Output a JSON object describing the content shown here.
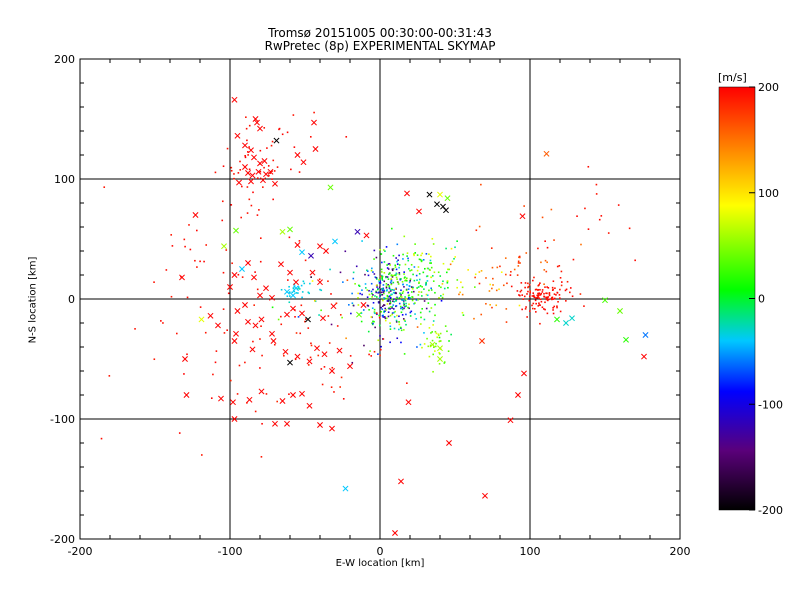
{
  "header": {
    "title": "Tromsø 20151005 00:30:00-00:31:43",
    "subtitle": "RwPretec (8p) EXPERIMENTAL SKYMAP"
  },
  "chart_data": {
    "type": "scatter",
    "title": "Tromsø 20151005 00:30:00-00:31:43",
    "subtitle": "RwPretec (8p) EXPERIMENTAL SKYMAP",
    "xlabel": "E-W location [km]",
    "ylabel": "N-S location [km]",
    "xlim": [
      -200,
      200
    ],
    "ylim": [
      -200,
      200
    ],
    "x_ticks": [
      "-200",
      "-100",
      "0",
      "100",
      "200"
    ],
    "y_ticks": [
      "-200",
      "-100",
      "0",
      "100",
      "200"
    ],
    "grid": "lines at ±100 and 0 km",
    "colorbar": {
      "label": "[m/s]",
      "range": [
        -200,
        200
      ],
      "ticks": [
        "200",
        "100",
        "0",
        "-100",
        "-200"
      ],
      "palette": [
        "#000000",
        "#5a007a",
        "#0000ff",
        "#00c8ff",
        "#00ff00",
        "#ffff00",
        "#ff8000",
        "#ff0000"
      ]
    },
    "marker_legend_note": "x = larger marker, . = small dot; color encodes velocity",
    "points": [
      {
        "x": -97,
        "y": 166,
        "v": 200,
        "m": "x"
      },
      {
        "x": -95,
        "y": 136,
        "v": 200,
        "m": "x"
      },
      {
        "x": -83,
        "y": 150,
        "v": 200,
        "m": "x"
      },
      {
        "x": -82,
        "y": 147,
        "v": 200,
        "m": "x"
      },
      {
        "x": -80,
        "y": 142,
        "v": 200,
        "m": "x"
      },
      {
        "x": -69,
        "y": 132,
        "v": -200,
        "m": "x"
      },
      {
        "x": -90,
        "y": 128,
        "v": 200,
        "m": "x"
      },
      {
        "x": -86,
        "y": 124,
        "v": 200,
        "m": "x"
      },
      {
        "x": -84,
        "y": 118,
        "v": 200,
        "m": "x"
      },
      {
        "x": -80,
        "y": 113,
        "v": 200,
        "m": "x"
      },
      {
        "x": -77,
        "y": 115,
        "v": 200,
        "m": "x"
      },
      {
        "x": -90,
        "y": 110,
        "v": 200,
        "m": "x"
      },
      {
        "x": -88,
        "y": 105,
        "v": 200,
        "m": "x"
      },
      {
        "x": -85,
        "y": 103,
        "v": 200,
        "m": "x"
      },
      {
        "x": -81,
        "y": 106,
        "v": 200,
        "m": "x"
      },
      {
        "x": -76,
        "y": 104,
        "v": 200,
        "m": "x"
      },
      {
        "x": -73,
        "y": 106,
        "v": 200,
        "m": "x"
      },
      {
        "x": -94,
        "y": 97,
        "v": 200,
        "m": "x"
      },
      {
        "x": -86,
        "y": 98,
        "v": 200,
        "m": "x"
      },
      {
        "x": -70,
        "y": 96,
        "v": 200,
        "m": "x"
      },
      {
        "x": -78,
        "y": 99,
        "v": 200,
        "m": "x"
      },
      {
        "x": -55,
        "y": 120,
        "v": 200,
        "m": "x"
      },
      {
        "x": -51,
        "y": 114,
        "v": 200,
        "m": "x"
      },
      {
        "x": -44,
        "y": 147,
        "v": 200,
        "m": "x"
      },
      {
        "x": -43,
        "y": 125,
        "v": 200,
        "m": "x"
      },
      {
        "x": -33,
        "y": 93,
        "v": 40,
        "m": "x"
      },
      {
        "x": -123,
        "y": 70,
        "v": 200,
        "m": "x"
      },
      {
        "x": -96,
        "y": 57,
        "v": 40,
        "m": "x"
      },
      {
        "x": -104,
        "y": 44,
        "v": 60,
        "m": "x"
      },
      {
        "x": -92,
        "y": 25,
        "v": -40,
        "m": "x"
      },
      {
        "x": -65,
        "y": 56,
        "v": 60,
        "m": "x"
      },
      {
        "x": -60,
        "y": 58,
        "v": 40,
        "m": "x"
      },
      {
        "x": -55,
        "y": 45,
        "v": 200,
        "m": "x"
      },
      {
        "x": -52,
        "y": 39,
        "v": -40,
        "m": "x"
      },
      {
        "x": -46,
        "y": 36,
        "v": -120,
        "m": "x"
      },
      {
        "x": -40,
        "y": 44,
        "v": 200,
        "m": "x"
      },
      {
        "x": -36,
        "y": 40,
        "v": 200,
        "m": "x"
      },
      {
        "x": -30,
        "y": 48,
        "v": -40,
        "m": "x"
      },
      {
        "x": -15,
        "y": 56,
        "v": -120,
        "m": "x"
      },
      {
        "x": -9,
        "y": 53,
        "v": 200,
        "m": "x"
      },
      {
        "x": -88,
        "y": 30,
        "v": 200,
        "m": "x"
      },
      {
        "x": -84,
        "y": 18,
        "v": 200,
        "m": "x"
      },
      {
        "x": -66,
        "y": 29,
        "v": 200,
        "m": "x"
      },
      {
        "x": -60,
        "y": 22,
        "v": 200,
        "m": "x"
      },
      {
        "x": -56,
        "y": 14,
        "v": 200,
        "m": "x"
      },
      {
        "x": -45,
        "y": 22,
        "v": 200,
        "m": "x"
      },
      {
        "x": -40,
        "y": 14,
        "v": 200,
        "m": "x"
      },
      {
        "x": -76,
        "y": 9,
        "v": 200,
        "m": "x"
      },
      {
        "x": -80,
        "y": 3,
        "v": 200,
        "m": "x"
      },
      {
        "x": -72,
        "y": 1,
        "v": 200,
        "m": "x"
      },
      {
        "x": -62,
        "y": 6,
        "v": -40,
        "m": "x"
      },
      {
        "x": -58,
        "y": 3,
        "v": -40,
        "m": "x"
      },
      {
        "x": -56,
        "y": 9,
        "v": -40,
        "m": "x"
      },
      {
        "x": -132,
        "y": 18,
        "v": 200,
        "m": "x"
      },
      {
        "x": -100,
        "y": 10,
        "v": 200,
        "m": "x"
      },
      {
        "x": -97,
        "y": 20,
        "v": 200,
        "m": "x"
      },
      {
        "x": -113,
        "y": -14,
        "v": 200,
        "m": "x"
      },
      {
        "x": -119,
        "y": -17,
        "v": 80,
        "m": "x"
      },
      {
        "x": -108,
        "y": -22,
        "v": 200,
        "m": "x"
      },
      {
        "x": -95,
        "y": -10,
        "v": 200,
        "m": "x"
      },
      {
        "x": -90,
        "y": -5,
        "v": 200,
        "m": "x"
      },
      {
        "x": -88,
        "y": -19,
        "v": 200,
        "m": "x"
      },
      {
        "x": -83,
        "y": -22,
        "v": 200,
        "m": "x"
      },
      {
        "x": -79,
        "y": -17,
        "v": 200,
        "m": "x"
      },
      {
        "x": -72,
        "y": -29,
        "v": 200,
        "m": "x"
      },
      {
        "x": -62,
        "y": -13,
        "v": 200,
        "m": "x"
      },
      {
        "x": -58,
        "y": -8,
        "v": 200,
        "m": "x"
      },
      {
        "x": -52,
        "y": -12,
        "v": 200,
        "m": "x"
      },
      {
        "x": -48,
        "y": -17,
        "v": -200,
        "m": "x"
      },
      {
        "x": -38,
        "y": -16,
        "v": 200,
        "m": "x"
      },
      {
        "x": -31,
        "y": -6,
        "v": 200,
        "m": "x"
      },
      {
        "x": -14,
        "y": -13,
        "v": 40,
        "m": "x"
      },
      {
        "x": -11,
        "y": -5,
        "v": 200,
        "m": "x"
      },
      {
        "x": -96,
        "y": -29,
        "v": 200,
        "m": "x"
      },
      {
        "x": -97,
        "y": -35,
        "v": 200,
        "m": "x"
      },
      {
        "x": -85,
        "y": -42,
        "v": 200,
        "m": "x"
      },
      {
        "x": -71,
        "y": -35,
        "v": 200,
        "m": "x"
      },
      {
        "x": -63,
        "y": -44,
        "v": 200,
        "m": "x"
      },
      {
        "x": -60,
        "y": -53,
        "v": -200,
        "m": "x"
      },
      {
        "x": -55,
        "y": -48,
        "v": 200,
        "m": "x"
      },
      {
        "x": -47,
        "y": -52,
        "v": 200,
        "m": "x"
      },
      {
        "x": -42,
        "y": -41,
        "v": 200,
        "m": "x"
      },
      {
        "x": -37,
        "y": -46,
        "v": 200,
        "m": "x"
      },
      {
        "x": -27,
        "y": -43,
        "v": 200,
        "m": "x"
      },
      {
        "x": -32,
        "y": -60,
        "v": 200,
        "m": "x"
      },
      {
        "x": -20,
        "y": -56,
        "v": 200,
        "m": "x"
      },
      {
        "x": -130,
        "y": -50,
        "v": 200,
        "m": "x"
      },
      {
        "x": -129,
        "y": -80,
        "v": 200,
        "m": "x"
      },
      {
        "x": -106,
        "y": -83,
        "v": 200,
        "m": "x"
      },
      {
        "x": -98,
        "y": -86,
        "v": 200,
        "m": "x"
      },
      {
        "x": -87,
        "y": -84,
        "v": 200,
        "m": "x"
      },
      {
        "x": -79,
        "y": -77,
        "v": 200,
        "m": "x"
      },
      {
        "x": -65,
        "y": -85,
        "v": 200,
        "m": "x"
      },
      {
        "x": -58,
        "y": -80,
        "v": 200,
        "m": "x"
      },
      {
        "x": -52,
        "y": -79,
        "v": 200,
        "m": "x"
      },
      {
        "x": -47,
        "y": -89,
        "v": 200,
        "m": "x"
      },
      {
        "x": -97,
        "y": -100,
        "v": 200,
        "m": "x"
      },
      {
        "x": -70,
        "y": -104,
        "v": 200,
        "m": "x"
      },
      {
        "x": -62,
        "y": -104,
        "v": 200,
        "m": "x"
      },
      {
        "x": -40,
        "y": -105,
        "v": 200,
        "m": "x"
      },
      {
        "x": -32,
        "y": -108,
        "v": 200,
        "m": "x"
      },
      {
        "x": -23,
        "y": -158,
        "v": -40,
        "m": "x"
      },
      {
        "x": 10,
        "y": -195,
        "v": 200,
        "m": "x"
      },
      {
        "x": 14,
        "y": -152,
        "v": 200,
        "m": "x"
      },
      {
        "x": 19,
        "y": -86,
        "v": 200,
        "m": "x"
      },
      {
        "x": 46,
        "y": -120,
        "v": 200,
        "m": "x"
      },
      {
        "x": 70,
        "y": -164,
        "v": 200,
        "m": "x"
      },
      {
        "x": 87,
        "y": -101,
        "v": 200,
        "m": "x"
      },
      {
        "x": 92,
        "y": -80,
        "v": 200,
        "m": "x"
      },
      {
        "x": 96,
        "y": -62,
        "v": 200,
        "m": "x"
      },
      {
        "x": 26,
        "y": 73,
        "v": 200,
        "m": "x"
      },
      {
        "x": 18,
        "y": 88,
        "v": 200,
        "m": "x"
      },
      {
        "x": 33,
        "y": 87,
        "v": -200,
        "m": "x"
      },
      {
        "x": 38,
        "y": 79,
        "v": -200,
        "m": "x"
      },
      {
        "x": 42,
        "y": 77,
        "v": -200,
        "m": "x"
      },
      {
        "x": 44,
        "y": 74,
        "v": -200,
        "m": "x"
      },
      {
        "x": 40,
        "y": 87,
        "v": 80,
        "m": "x"
      },
      {
        "x": 45,
        "y": 84,
        "v": 40,
        "m": "x"
      },
      {
        "x": 95,
        "y": 69,
        "v": 200,
        "m": "x"
      },
      {
        "x": 111,
        "y": 121,
        "v": 160,
        "m": "x"
      },
      {
        "x": 118,
        "y": -17,
        "v": 20,
        "m": "x"
      },
      {
        "x": 124,
        "y": -20,
        "v": -30,
        "m": "x"
      },
      {
        "x": 128,
        "y": -16,
        "v": -30,
        "m": "x"
      },
      {
        "x": 150,
        "y": -1,
        "v": 30,
        "m": "x"
      },
      {
        "x": 160,
        "y": -10,
        "v": 40,
        "m": "x"
      },
      {
        "x": 164,
        "y": -34,
        "v": 20,
        "m": "x"
      },
      {
        "x": 177,
        "y": -30,
        "v": -60,
        "m": "x"
      },
      {
        "x": 176,
        "y": -48,
        "v": 200,
        "m": "x"
      },
      {
        "x": 68,
        "y": -35,
        "v": 180,
        "m": "x"
      },
      {
        "x": 40,
        "y": -41,
        "v": 60,
        "m": "x"
      },
      {
        "x": 35,
        "y": -38,
        "v": 60,
        "m": "x"
      },
      {
        "x": 40,
        "y": -50,
        "v": 60,
        "m": "x"
      }
    ]
  },
  "dot_clusters": [
    {
      "cx": -85,
      "cy": 115,
      "sx": 12,
      "sy": 18,
      "n": 45,
      "vmin": 190,
      "vmax": 200
    },
    {
      "cx": -60,
      "cy": 120,
      "sx": 20,
      "sy": 20,
      "n": 12,
      "vmin": 190,
      "vmax": 200
    },
    {
      "cx": -55,
      "cy": 7,
      "sx": 6,
      "sy": 4,
      "n": 30,
      "vmin": -40,
      "vmax": -25
    },
    {
      "cx": 5,
      "cy": 5,
      "sx": 11,
      "sy": 17,
      "n": 380,
      "vmin": -160,
      "vmax": 80
    },
    {
      "cx": 30,
      "cy": 15,
      "sx": 12,
      "sy": 18,
      "n": 120,
      "vmin": -40,
      "vmax": 80
    },
    {
      "cx": 37,
      "cy": -38,
      "sx": 5,
      "sy": 8,
      "n": 35,
      "vmin": 30,
      "vmax": 80
    },
    {
      "cx": 108,
      "cy": 2,
      "sx": 9,
      "sy": 7,
      "n": 120,
      "vmin": 190,
      "vmax": 200
    },
    {
      "cx": 95,
      "cy": 25,
      "sx": 18,
      "sy": 20,
      "n": 45,
      "vmin": 150,
      "vmax": 200
    },
    {
      "cx": 70,
      "cy": 15,
      "sx": 14,
      "sy": 12,
      "n": 35,
      "vmin": 80,
      "vmax": 180
    },
    {
      "cx": 140,
      "cy": 50,
      "sx": 25,
      "sy": 40,
      "n": 18,
      "vmin": 190,
      "vmax": 200
    },
    {
      "cx": -100,
      "cy": -30,
      "sx": 40,
      "sy": 50,
      "n": 55,
      "vmin": 190,
      "vmax": 200
    },
    {
      "cx": -40,
      "cy": -40,
      "sx": 25,
      "sy": 30,
      "n": 45,
      "vmin": 180,
      "vmax": 200
    },
    {
      "cx": -110,
      "cy": 40,
      "sx": 25,
      "sy": 30,
      "n": 20,
      "vmin": 190,
      "vmax": 200
    },
    {
      "cx": -25,
      "cy": -10,
      "sx": 20,
      "sy": 25,
      "n": 25,
      "vmin": -200,
      "vmax": 200
    }
  ]
}
